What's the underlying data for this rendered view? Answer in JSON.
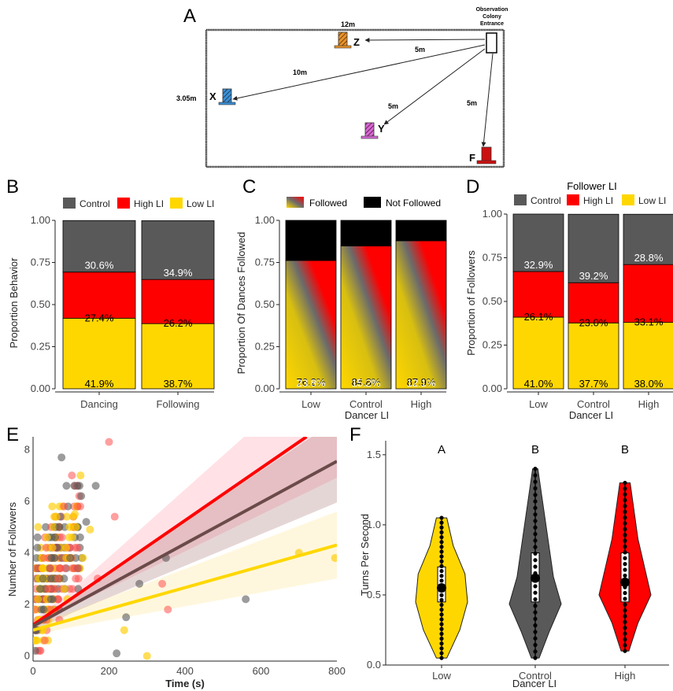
{
  "colors": {
    "control": "#595959",
    "high_li": "#ff0000",
    "low_li": "#ffd700",
    "not_followed": "#000000",
    "combined_line": "#6b4a4a",
    "station_x": "#3a8fd6",
    "station_y": "#d66ad6",
    "station_z": "#e8922a",
    "station_f": "#cc1010"
  },
  "panel_a": {
    "panel_label": "A",
    "entrance_label_lines": [
      "Observation",
      "Colony",
      "Entrance"
    ],
    "stations": [
      {
        "id": "Z",
        "label": "Z",
        "distance_label": "5m",
        "icon": "feeder-z-icon"
      },
      {
        "id": "X",
        "label": "X",
        "distance_label": "10m",
        "icon": "feeder-x-icon"
      },
      {
        "id": "Y",
        "label": "Y",
        "distance_label": "5m",
        "icon": "feeder-y-icon"
      },
      {
        "id": "F",
        "label": "F",
        "distance_label": "5m",
        "icon": "feeder-f-icon"
      }
    ],
    "arena_width_label": "12m",
    "arena_height_label": "3.05m"
  },
  "chart_data": [
    {
      "panel": "B",
      "type": "bar",
      "stacked": true,
      "categories": [
        "Dancing",
        "Following"
      ],
      "series": [
        {
          "name": "Control",
          "values": [
            0.306,
            0.349
          ],
          "labels": [
            "30.6%",
            "34.9%"
          ]
        },
        {
          "name": "High LI",
          "values": [
            0.274,
            0.262
          ],
          "labels": [
            "27.4%",
            "26.2%"
          ]
        },
        {
          "name": "Low LI",
          "values": [
            0.419,
            0.387
          ],
          "labels": [
            "41.9%",
            "38.7%"
          ]
        }
      ],
      "ylabel": "Proportion Behavior",
      "xlabel": "",
      "yticks": [
        "0.00",
        "0.25",
        "0.50",
        "0.75",
        "1.00"
      ],
      "ylim": [
        0,
        1
      ],
      "legend_position": "top"
    },
    {
      "panel": "C",
      "type": "bar",
      "stacked": true,
      "categories": [
        "Low",
        "Control",
        "High"
      ],
      "series": [
        {
          "name": "Not Followed",
          "values": [
            0.238,
            0.152,
            0.121
          ],
          "labels": [
            "23.8%",
            "15.2%",
            "12.1%"
          ]
        },
        {
          "name": "Followed",
          "values": [
            0.762,
            0.848,
            0.879
          ],
          "labels": [
            "76.2%",
            "84.8%",
            "87.9%"
          ]
        }
      ],
      "ylabel": "Proportion Of Dances Followed",
      "xlabel": "Dancer LI",
      "yticks": [
        "0.00",
        "0.25",
        "0.50",
        "0.75",
        "1.00"
      ],
      "ylim": [
        0,
        1
      ],
      "legend_position": "top"
    },
    {
      "panel": "D",
      "type": "bar",
      "stacked": true,
      "categories": [
        "Low",
        "Control",
        "High"
      ],
      "series": [
        {
          "name": "Control",
          "values": [
            0.329,
            0.392,
            0.288
          ],
          "labels": [
            "32.9%",
            "39.2%",
            "28.8%"
          ]
        },
        {
          "name": "High LI",
          "values": [
            0.261,
            0.23,
            0.331
          ],
          "labels": [
            "26.1%",
            "23.0%",
            "33.1%"
          ]
        },
        {
          "name": "Low LI",
          "values": [
            0.41,
            0.377,
            0.38
          ],
          "labels": [
            "41.0%",
            "37.7%",
            "38.0%"
          ]
        }
      ],
      "legend_title": "Follower LI",
      "ylabel": "Proportion of Followers",
      "xlabel": "Dancer LI",
      "yticks": [
        "0.00",
        "0.25",
        "0.50",
        "0.75",
        "1.00"
      ],
      "ylim": [
        0,
        1
      ],
      "legend_position": "top"
    },
    {
      "panel": "E",
      "type": "scatter",
      "xlabel": "Time (s)",
      "ylabel": "Number of Followers",
      "xlim": [
        0,
        800
      ],
      "ylim": [
        -0.2,
        8.5
      ],
      "xticks": [
        "0",
        "200",
        "400",
        "600",
        "800"
      ],
      "yticks": [
        "0",
        "2",
        "4",
        "6",
        "8"
      ],
      "trend_lines": [
        {
          "group": "High LI",
          "intercept": 1.2,
          "end": [
            720,
            8.5
          ]
        },
        {
          "group": "Combined",
          "intercept": 1.15,
          "end": [
            800,
            7.55
          ]
        },
        {
          "group": "Low LI",
          "intercept": 1.0,
          "end": [
            800,
            4.3
          ]
        }
      ],
      "outlier_points": [
        {
          "group": "High LI",
          "x": 200,
          "y": 8.3
        },
        {
          "group": "Control",
          "x": 75,
          "y": 7.7
        },
        {
          "group": "Control",
          "x": 165,
          "y": 6.6
        },
        {
          "group": "Low LI",
          "x": 110,
          "y": 5.5
        },
        {
          "group": "High LI",
          "x": 215,
          "y": 5.4
        },
        {
          "group": "Control",
          "x": 350,
          "y": 3.8
        },
        {
          "group": "Low LI",
          "x": 700,
          "y": 4.0
        },
        {
          "group": "Low LI",
          "x": 795,
          "y": 3.8
        },
        {
          "group": "Control",
          "x": 560,
          "y": 2.2
        },
        {
          "group": "Control",
          "x": 280,
          "y": 2.8
        },
        {
          "group": "High LI",
          "x": 340,
          "y": 2.8
        },
        {
          "group": "High LI",
          "x": 355,
          "y": 1.8
        },
        {
          "group": "Low LI",
          "x": 240,
          "y": 1.0
        },
        {
          "group": "Low LI",
          "x": 300,
          "y": 0.0
        },
        {
          "group": "Control",
          "x": 220,
          "y": 0.1
        },
        {
          "group": "Control",
          "x": 245,
          "y": 1.5
        },
        {
          "group": "High LI",
          "x": 170,
          "y": 3.0
        },
        {
          "group": "Low LI",
          "x": 150,
          "y": 4.9
        },
        {
          "group": "Control",
          "x": 140,
          "y": 5.2
        }
      ]
    },
    {
      "panel": "F",
      "type": "violin",
      "categories": [
        "Low",
        "Control",
        "High"
      ],
      "significance_letters": [
        "A",
        "B",
        "B"
      ],
      "medians": [
        0.55,
        0.62,
        0.59
      ],
      "iqr": [
        [
          0.45,
          0.7
        ],
        [
          0.45,
          0.8
        ],
        [
          0.45,
          0.8
        ]
      ],
      "ranges": [
        [
          0.05,
          1.05
        ],
        [
          0.05,
          1.4
        ],
        [
          0.1,
          1.3
        ]
      ],
      "xlabel": "Dancer LI",
      "ylabel": "Turns Per Second",
      "yticks": [
        "0.0",
        "0.5",
        "1.0",
        "1.5"
      ],
      "ylim": [
        0,
        1.6
      ]
    }
  ]
}
